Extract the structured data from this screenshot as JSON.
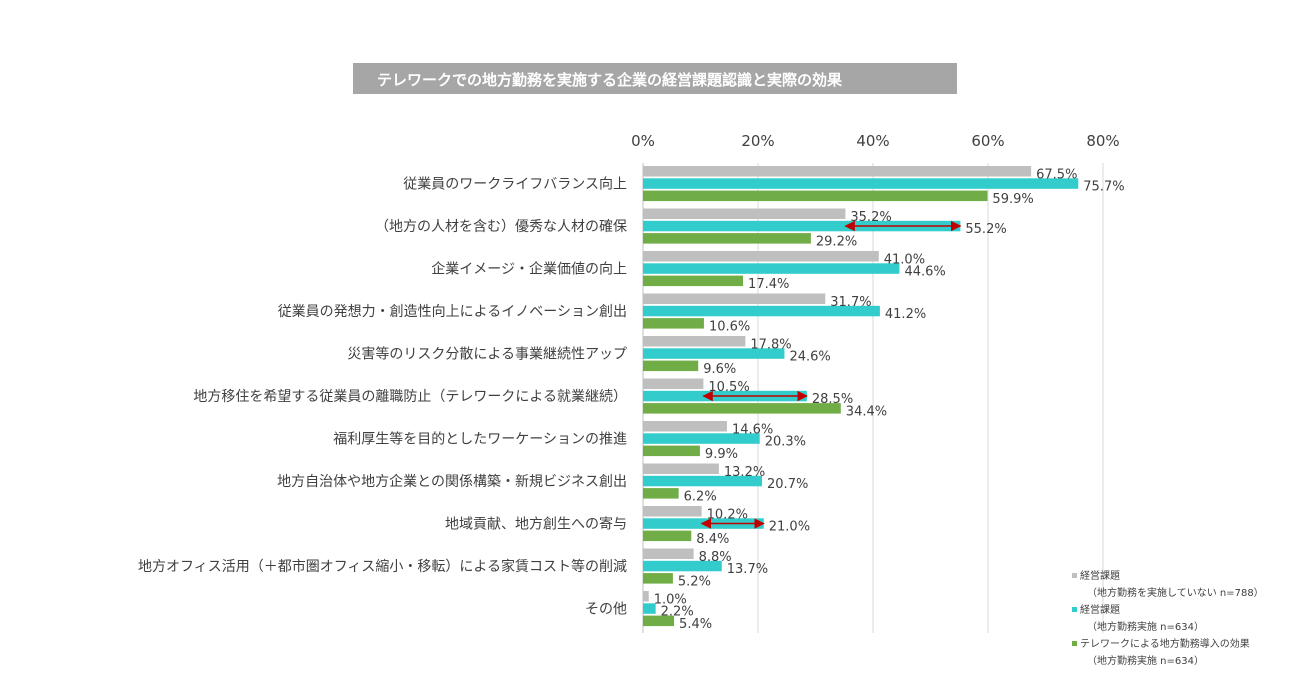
{
  "title": "テレワークでの地方勤務を実施する企業の経営課題認識と実際の効果",
  "colors": {
    "gray": "#bfbfbf",
    "teal": "#33cccc",
    "green": "#70ad47",
    "arrow": "#c00000",
    "grid": "#d9d9d9"
  },
  "legend": [
    {
      "label": "経営課題",
      "sub": "（地方勤務を実施していない n=788）",
      "color": "#bfbfbf"
    },
    {
      "label": "経営課題",
      "sub": "（地方勤務実施 n=634）",
      "color": "#33cccc"
    },
    {
      "label": "テレワークによる地方勤務導入の効果",
      "sub": "（地方勤務実施 n=634）",
      "color": "#70ad47"
    }
  ],
  "chart_data": {
    "type": "bar",
    "orientation": "horizontal",
    "title": "テレワークでの地方勤務を実施する企業の経営課題認識と実際の効果",
    "xlim": [
      0,
      80
    ],
    "x_ticks": [
      "0%",
      "20%",
      "40%",
      "60%",
      "80%"
    ],
    "x_tick_values": [
      0,
      20,
      40,
      60,
      80
    ],
    "grid": true,
    "legend_position": "bottom-right",
    "categories": [
      "従業員のワークライフバランス向上",
      "（地方の人材を含む）優秀な人材の確保",
      "企業イメージ・企業価値の向上",
      "従業員の発想力・創造性向上によるイノベーション創出",
      "災害等のリスク分散による事業継続性アップ",
      "地方移住を希望する従業員の離職防止（テレワークによる就業継続）",
      "福利厚生等を目的としたワーケーションの推進",
      "地方自治体や地方企業との関係構築・新規ビジネス創出",
      "地域貢献、地方創生への寄与",
      "地方オフィス活用（＋都市圏オフィス縮小・移転）による家賃コスト等の削減",
      "その他"
    ],
    "series": [
      {
        "name": "経営課題（地方勤務を実施していない n=788）",
        "color": "#bfbfbf",
        "values": [
          67.5,
          35.2,
          41.0,
          31.7,
          17.8,
          10.5,
          14.6,
          13.2,
          10.2,
          8.8,
          1.0
        ],
        "labels": [
          "67.5%",
          "35.2%",
          "41.0%",
          "31.7%",
          "17.8%",
          "10.5%",
          "14.6%",
          "13.2%",
          "10.2%",
          "8.8%",
          "1.0%"
        ]
      },
      {
        "name": "経営課題（地方勤務実施 n=634）",
        "color": "#33cccc",
        "values": [
          75.7,
          55.2,
          44.6,
          41.2,
          24.6,
          28.5,
          20.3,
          20.7,
          21.0,
          13.7,
          2.2
        ],
        "labels": [
          "75.7%",
          "55.2%",
          "44.6%",
          "41.2%",
          "24.6%",
          "28.5%",
          "20.3%",
          "20.7%",
          "21.0%",
          "13.7%",
          "2.2%"
        ]
      },
      {
        "name": "テレワークによる地方勤務導入の効果（地方勤務実施 n=634）",
        "color": "#70ad47",
        "values": [
          59.9,
          29.2,
          17.4,
          10.6,
          9.6,
          34.4,
          9.9,
          6.2,
          8.4,
          5.2,
          5.4
        ],
        "labels": [
          "59.9%",
          "29.2%",
          "17.4%",
          "10.6%",
          "9.6%",
          "34.4%",
          "9.9%",
          "6.2%",
          "8.4%",
          "5.2%",
          "5.4%"
        ]
      }
    ],
    "annotations": [
      {
        "type": "double-arrow",
        "category_index": 1,
        "from": 35.2,
        "to": 55.2
      },
      {
        "type": "double-arrow",
        "category_index": 5,
        "from": 10.5,
        "to": 28.5
      },
      {
        "type": "double-arrow",
        "category_index": 8,
        "from": 10.2,
        "to": 21.0
      }
    ]
  }
}
